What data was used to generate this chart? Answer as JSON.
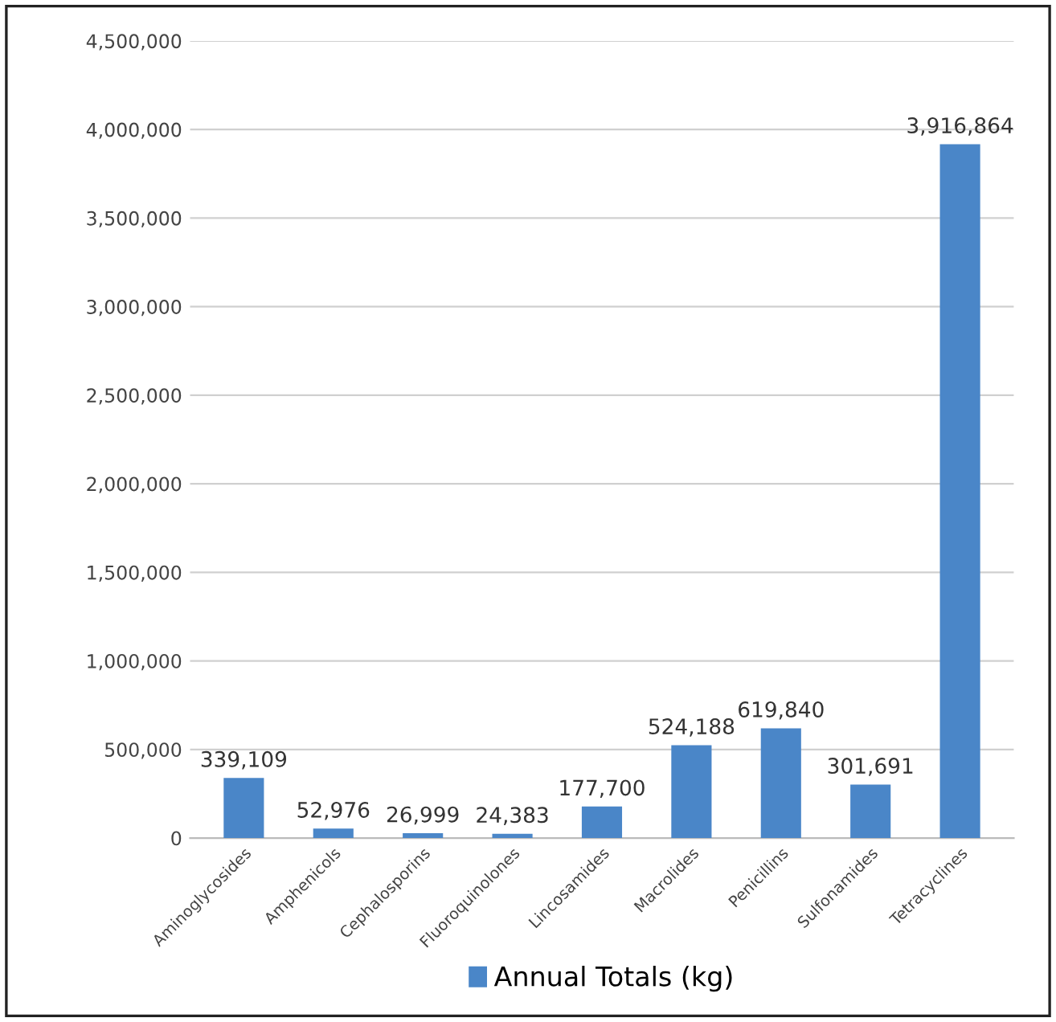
{
  "chart_data": {
    "type": "bar",
    "categories": [
      "Aminoglycosides",
      "Amphenicols",
      "Cephalosporins",
      "Fluoroquinolones",
      "Lincosamides",
      "Macrolides",
      "Penicillins",
      "Sulfonamides",
      "Tetracyclines"
    ],
    "series": [
      {
        "name": "Annual Totals (kg)",
        "color": "#4a86c8",
        "values": [
          339109,
          52976,
          26999,
          24383,
          177700,
          524188,
          619840,
          301691,
          3916864
        ],
        "value_labels": [
          "339,109",
          "52,976",
          "26,999",
          "24,383",
          "177,700",
          "524,188",
          "619,840",
          "301,691",
          "3,916,864"
        ]
      }
    ],
    "ylim": [
      0,
      4500000
    ],
    "yticks": [
      {
        "value": 0,
        "label": "0"
      },
      {
        "value": 500000,
        "label": "500,000"
      },
      {
        "value": 1000000,
        "label": "1,000,000"
      },
      {
        "value": 1500000,
        "label": "1,500,000"
      },
      {
        "value": 2000000,
        "label": "2,000,000"
      },
      {
        "value": 2500000,
        "label": "2,500,000"
      },
      {
        "value": 3000000,
        "label": "3,000,000"
      },
      {
        "value": 3500000,
        "label": "3,500,000"
      },
      {
        "value": 4000000,
        "label": "4,000,000"
      },
      {
        "value": 4500000,
        "label": "4,500,000"
      }
    ],
    "grid": "y",
    "legend": "bottom"
  }
}
